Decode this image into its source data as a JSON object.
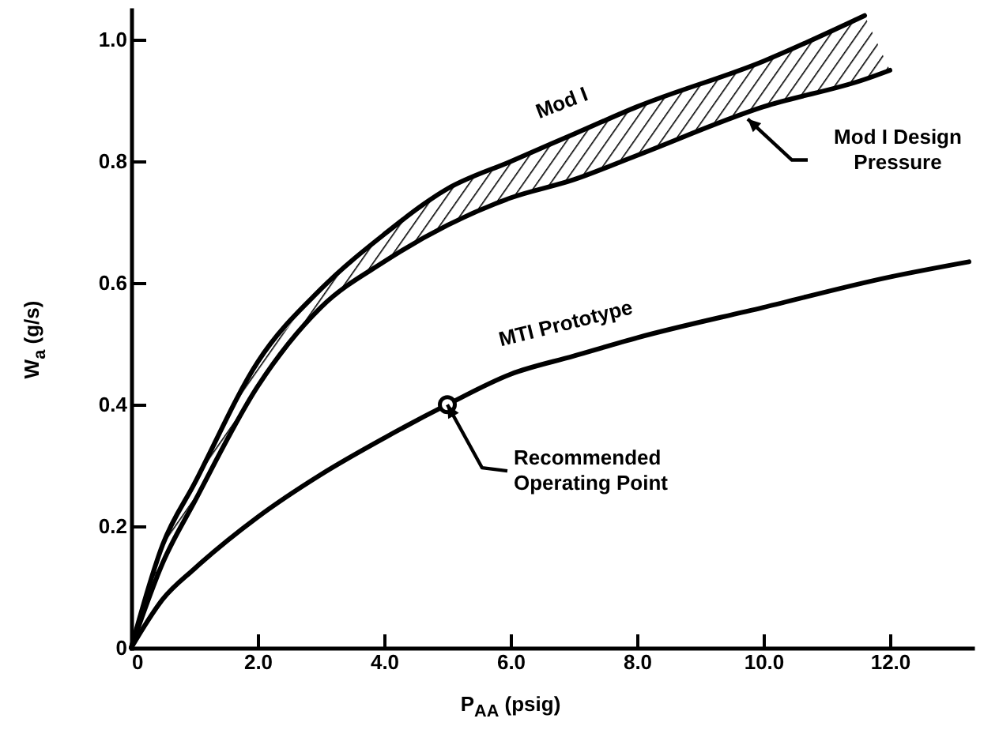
{
  "chart_data": {
    "type": "line",
    "xlabel": "P$_{AA}$ (psig)",
    "ylabel": "W$_{a}$ (g/s)",
    "xlim": [
      0,
      13.3
    ],
    "ylim": [
      0,
      1.05
    ],
    "xticks": [
      0,
      {
        "value": 2,
        "label": "2.0"
      },
      {
        "value": 4,
        "label": "4.0"
      },
      {
        "value": 6,
        "label": "6.0"
      },
      {
        "value": 8,
        "label": "8.0"
      },
      {
        "value": 10,
        "label": "10.0"
      },
      {
        "value": 12,
        "label": "12.0"
      }
    ],
    "yticks": [
      0,
      0.2,
      0.4,
      0.6,
      0.8,
      {
        "value": 1,
        "label": "1.0"
      }
    ],
    "grid": false,
    "line_style": "solid",
    "series": [
      {
        "name": "Mod I",
        "color": "#000000",
        "x": [
          0,
          0.5,
          1,
          2,
          3,
          4,
          5,
          6,
          7,
          8,
          10,
          11.6,
          12
        ],
        "values": [
          0,
          0.17,
          0.27,
          0.47,
          0.59,
          0.68,
          0.755,
          0.8,
          0.845,
          0.89,
          0.965,
          1.04,
          null
        ],
        "lower": [
          0,
          0.14,
          0.24,
          0.43,
          0.56,
          0.635,
          0.695,
          0.74,
          0.77,
          0.81,
          0.89,
          0.935,
          0.95
        ],
        "upper": [
          0,
          0.17,
          0.27,
          0.47,
          0.59,
          0.68,
          0.755,
          0.8,
          0.845,
          0.89,
          0.965,
          1.04,
          0.95
        ]
      },
      {
        "name": "MTI Prototype",
        "color": "#000000",
        "x": [
          0,
          0.5,
          1,
          2,
          3,
          4,
          5,
          6,
          7,
          8,
          10,
          12,
          13.25
        ],
        "values": [
          0,
          0.08,
          0.13,
          0.215,
          0.285,
          0.345,
          0.4,
          0.45,
          0.48,
          0.51,
          0.56,
          0.61,
          0.635
        ]
      },
      {
        "color": "#000000",
        "x": [
          0,
          0.5,
          1,
          2,
          3,
          4,
          5,
          6,
          7,
          8,
          10,
          11.6,
          12
        ],
        "values": [
          0,
          0.14,
          0.24,
          0.43,
          0.56,
          0.635,
          0.695,
          0.74,
          0.77,
          0.81,
          0.89,
          0.935,
          0.95
        ]
      },
      {
        "type": "scatter",
        "marker": "circle",
        "color": "#000000",
        "x": [
          5
        ],
        "values": [
          0.4
        ]
      }
    ],
    "annotations": [
      {
        "text": "Mod I Design Pressure",
        "x": 9.75,
        "y": 0.87
      },
      {
        "text": "Recommended Operating Point",
        "x": 5,
        "y": 0.4
      }
    ]
  }
}
